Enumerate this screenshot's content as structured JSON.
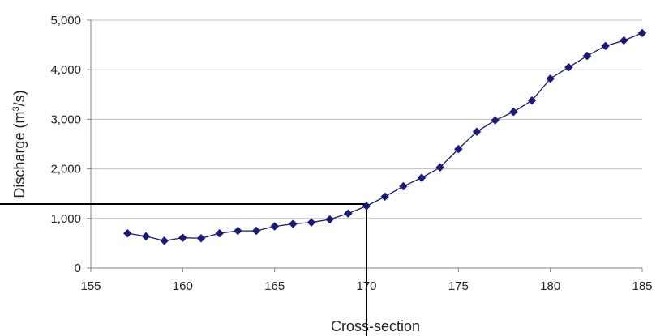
{
  "chart_data": {
    "type": "line",
    "xlabel": "Cross-section",
    "ylabel": {
      "prefix": "Discharge (m",
      "superscript": "3",
      "suffix": "/s)"
    },
    "xlim": [
      155,
      185
    ],
    "ylim": [
      0,
      5000
    ],
    "x_ticks": [
      155,
      160,
      165,
      170,
      175,
      180,
      185
    ],
    "y_ticks": [
      {
        "value": 0,
        "label": "0"
      },
      {
        "value": 1000,
        "label": "1,000"
      },
      {
        "value": 2000,
        "label": "2,000"
      },
      {
        "value": 3000,
        "label": "3,000"
      },
      {
        "value": 4000,
        "label": "4,000"
      },
      {
        "value": 5000,
        "label": "5,000"
      }
    ],
    "grid": true,
    "series": [
      {
        "color": "#1a1a7a",
        "marker": "diamond",
        "points": [
          {
            "x": 157,
            "y": 700
          },
          {
            "x": 158,
            "y": 640
          },
          {
            "x": 159,
            "y": 550
          },
          {
            "x": 160,
            "y": 610
          },
          {
            "x": 161,
            "y": 600
          },
          {
            "x": 162,
            "y": 700
          },
          {
            "x": 163,
            "y": 750
          },
          {
            "x": 164,
            "y": 750
          },
          {
            "x": 165,
            "y": 840
          },
          {
            "x": 166,
            "y": 890
          },
          {
            "x": 167,
            "y": 920
          },
          {
            "x": 168,
            "y": 980
          },
          {
            "x": 169,
            "y": 1100
          },
          {
            "x": 170,
            "y": 1250
          },
          {
            "x": 171,
            "y": 1440
          },
          {
            "x": 172,
            "y": 1650
          },
          {
            "x": 173,
            "y": 1820
          },
          {
            "x": 174,
            "y": 2030
          },
          {
            "x": 175,
            "y": 2400
          },
          {
            "x": 176,
            "y": 2750
          },
          {
            "x": 177,
            "y": 2980
          },
          {
            "x": 178,
            "y": 3150
          },
          {
            "x": 179,
            "y": 3380
          },
          {
            "x": 180,
            "y": 3820
          },
          {
            "x": 181,
            "y": 4050
          },
          {
            "x": 182,
            "y": 4280
          },
          {
            "x": 183,
            "y": 4480
          },
          {
            "x": 184,
            "y": 4590
          },
          {
            "x": 185,
            "y": 4740
          }
        ]
      }
    ],
    "reference_lines": {
      "x": 170,
      "y": 1290,
      "color": "#000000"
    },
    "colors": {
      "grid": "#c0c0c0",
      "axis": "#808080"
    }
  }
}
